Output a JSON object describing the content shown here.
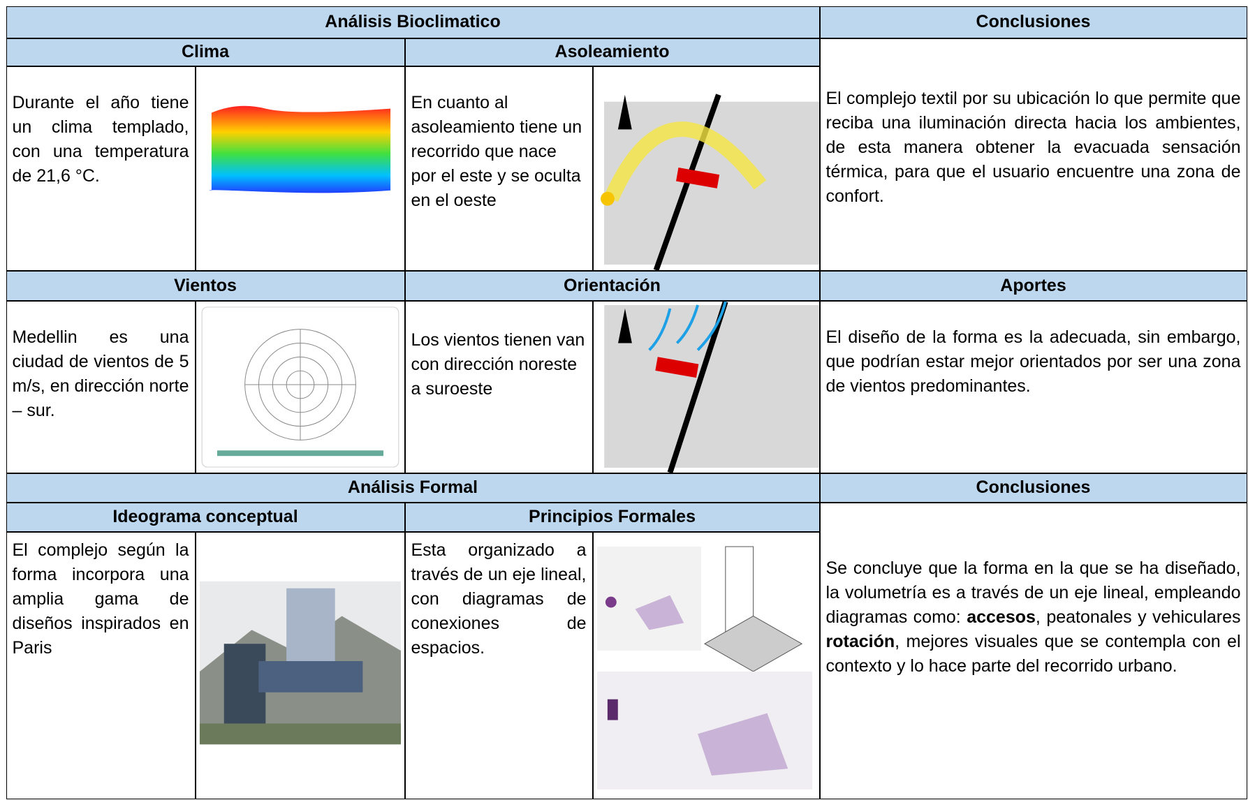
{
  "table": {
    "bioclimatic": {
      "title": "Análisis Bioclimatico",
      "conclusions_title": "Conclusiones",
      "clima": {
        "title": "Clima",
        "text": "Durante el año tiene un clima templado, con una temperatura de 21,6 °C."
      },
      "asoleamiento": {
        "title": "Asoleamiento",
        "text": "En cuanto al asoleamiento tiene un recorrido que nace por el este y se oculta en el oeste"
      },
      "conclusion": "El complejo textil por su ubicación lo que permite que reciba una iluminación directa hacia los ambientes, de esta manera obtener la evacuada sensación térmica, para que el usuario encuentre una zona de confort.",
      "vientos": {
        "title": "Vientos",
        "text": "Medellin es una ciudad de vientos de 5 m/s, en dirección norte – sur."
      },
      "orientacion": {
        "title": "Orientación",
        "text": "Los vientos tienen van con dirección noreste a suroeste"
      },
      "aportes": {
        "title": "Aportes",
        "text": "El diseño de la forma es la adecuada, sin embargo, que podrían estar mejor orientados por ser una zona de vientos predominantes."
      }
    },
    "formal": {
      "title": "Análisis Formal",
      "conclusions_title": "Conclusiones",
      "ideograma": {
        "title": "Ideograma conceptual",
        "text": "El complejo según la forma incorpora una amplia gama de diseños inspirados en Paris"
      },
      "principios": {
        "title": "Principios Formales",
        "text": "Esta organizado a través de un eje lineal, con diagramas de conexiones de espacios."
      },
      "conclusion": [
        {
          "text": "Se concluye que la forma en la que se ha diseñado, la volumetría es a través de un eje lineal, empleando diagramas como: ",
          "bold": false
        },
        {
          "text": "accesos",
          "bold": true
        },
        {
          "text": ", peatonales y vehiculares ",
          "bold": false
        },
        {
          "text": "rotación",
          "bold": true
        },
        {
          "text": ", mejores visuales que se contempla con el contexto y lo hace parte del recorrido urbano.",
          "bold": false
        }
      ]
    }
  }
}
